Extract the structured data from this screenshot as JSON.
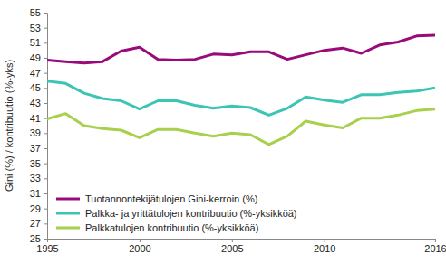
{
  "chart_data": {
    "type": "line",
    "y_label": "Gini (%) / kontribuutio (%-yks)",
    "x": [
      1995,
      1996,
      1997,
      1998,
      1999,
      2000,
      2001,
      2002,
      2003,
      2004,
      2005,
      2006,
      2007,
      2008,
      2009,
      2010,
      2011,
      2012,
      2013,
      2014,
      2015,
      2016
    ],
    "xlim": [
      1995,
      2016
    ],
    "xticks": [
      1995,
      2000,
      2005,
      2010,
      2016
    ],
    "ylim": [
      25,
      55
    ],
    "yticks": [
      25,
      27,
      29,
      31,
      33,
      35,
      37,
      39,
      41,
      43,
      45,
      47,
      49,
      51,
      53,
      55
    ],
    "grid": false,
    "legend": "lower left",
    "series": [
      {
        "name": "Tuotannontekijätulojen Gini-kerroin (%)",
        "color": "#990a7a",
        "values": [
          48.7,
          48.5,
          48.3,
          48.5,
          49.9,
          50.4,
          48.8,
          48.7,
          48.8,
          49.5,
          49.4,
          49.8,
          49.8,
          48.8,
          49.4,
          50.0,
          50.3,
          49.6,
          50.7,
          51.1,
          51.9,
          52.0
        ]
      },
      {
        "name": "Palkka- ja yrittätulojen kontribuutio (%-yksikköä)",
        "color": "#3cc4b4",
        "values": [
          45.9,
          45.6,
          44.3,
          43.6,
          43.3,
          42.2,
          43.3,
          43.3,
          42.7,
          42.3,
          42.6,
          42.4,
          41.4,
          42.3,
          43.8,
          43.4,
          43.1,
          44.1,
          44.1,
          44.4,
          44.6,
          45.0
        ]
      },
      {
        "name": "Palkkatulojen kontribuutio (%-yksikköä)",
        "color": "#a8d04c",
        "values": [
          40.9,
          41.6,
          40.0,
          39.6,
          39.4,
          38.4,
          39.5,
          39.5,
          39.0,
          38.6,
          39.0,
          38.8,
          37.5,
          38.6,
          40.6,
          40.1,
          39.7,
          41.0,
          41.0,
          41.4,
          42.0,
          42.2
        ]
      }
    ]
  }
}
